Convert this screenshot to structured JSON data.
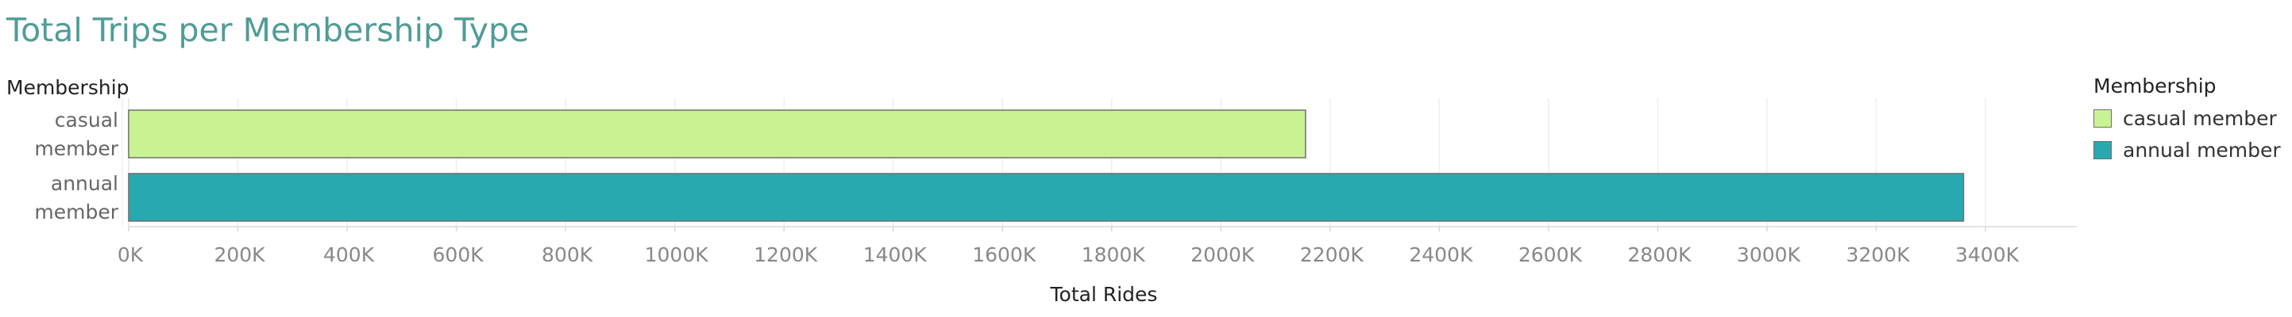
{
  "chart_data": {
    "type": "bar",
    "orientation": "horizontal",
    "title": "Total Trips per Membership Type",
    "xlabel": "Total Rides",
    "ylabel": "Membership",
    "categories": [
      "casual member",
      "annual member"
    ],
    "category_labels": [
      [
        "casual",
        "member"
      ],
      [
        "annual",
        "member"
      ]
    ],
    "values": [
      2155000,
      3360000
    ],
    "colors": [
      "#c9f393",
      "#28a9b0"
    ],
    "xlim": [
      0,
      3400000
    ],
    "xticks": [
      0,
      200000,
      400000,
      600000,
      800000,
      1000000,
      1200000,
      1400000,
      1600000,
      1800000,
      2000000,
      2200000,
      2400000,
      2600000,
      2800000,
      3000000,
      3200000,
      3400000
    ],
    "xtick_labels": [
      "0K",
      "200K",
      "400K",
      "600K",
      "800K",
      "1000K",
      "1200K",
      "1400K",
      "1600K",
      "1800K",
      "2000K",
      "2200K",
      "2400K",
      "2600K",
      "2800K",
      "3000K",
      "3200K",
      "3400K"
    ],
    "grid": true,
    "legend": {
      "title": "Membership",
      "position": "right",
      "items": [
        {
          "label": "casual member",
          "color": "#c9f393"
        },
        {
          "label": "annual member",
          "color": "#28a9b0"
        }
      ]
    }
  }
}
